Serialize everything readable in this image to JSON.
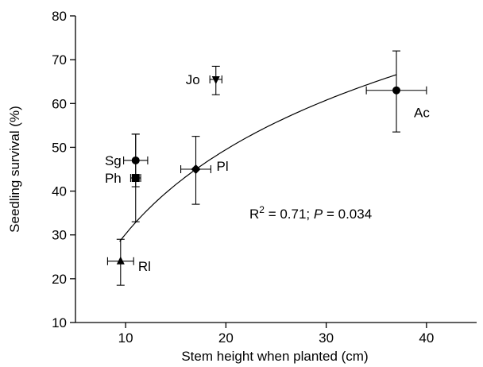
{
  "chart_data": {
    "type": "scatter",
    "xlabel": "Stem height when planted (cm)",
    "ylabel": "Seedling survival (%)",
    "xlim": [
      5,
      45
    ],
    "ylim": [
      10,
      80
    ],
    "xticks": [
      10,
      20,
      30,
      40
    ],
    "yticks": [
      10,
      20,
      30,
      40,
      50,
      60,
      70,
      80
    ],
    "grid": false,
    "points": [
      {
        "label": "Rl",
        "marker": "triangle",
        "x": 9.5,
        "y": 24,
        "xerr": 1.3,
        "yerr_low": 18.5,
        "yerr_high": 29
      },
      {
        "label": "Ph",
        "marker": "square",
        "x": 11,
        "y": 43,
        "xerr": 0.5,
        "yerr_low": 33,
        "yerr_high": 53
      },
      {
        "label": "Sg",
        "marker": "circle",
        "x": 11,
        "y": 47,
        "xerr": 1.2,
        "yerr_low": 41,
        "yerr_high": 53
      },
      {
        "label": "Pl",
        "marker": "diamond",
        "x": 17,
        "y": 45,
        "xerr": 1.5,
        "yerr_low": 37,
        "yerr_high": 52.5
      },
      {
        "label": "Jo",
        "marker": "triangle-down",
        "x": 19,
        "y": 65.5,
        "xerr": 0.6,
        "yerr_low": 62,
        "yerr_high": 68.5
      },
      {
        "label": "Ac",
        "marker": "circle",
        "x": 37,
        "y": 63,
        "xerr": 3,
        "yerr_low": 53.5,
        "yerr_high": 72
      }
    ],
    "fit": {
      "type": "logarithmic",
      "a": -33.8,
      "b": 27.8,
      "x_start": 9.4,
      "x_end": 37
    },
    "annotation": {
      "r2_prefix": "R",
      "r2_sup": "2",
      "r2_rest": " = 0.71; ",
      "p_label": "P",
      "p_rest": " = 0.034"
    }
  }
}
